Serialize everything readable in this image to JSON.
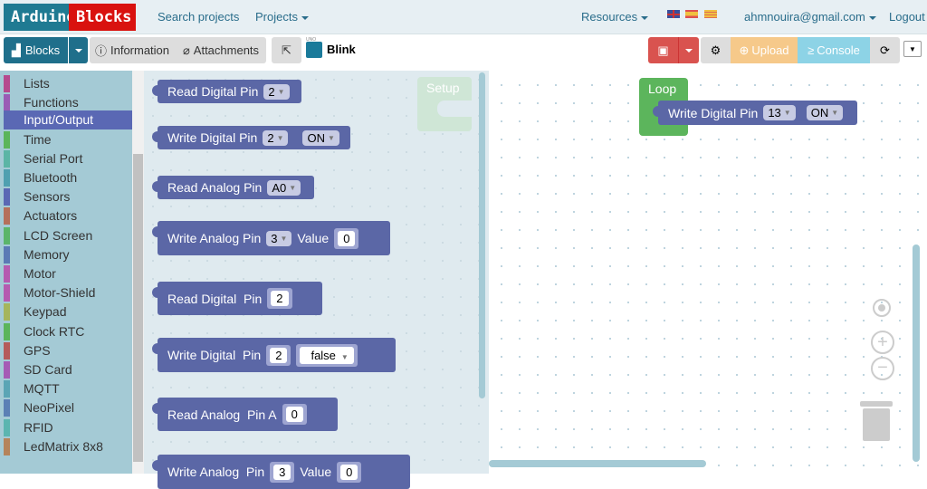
{
  "nav": {
    "logo": [
      "Arduino",
      "Blocks"
    ],
    "search": "Search projects",
    "projects": "Projects",
    "resources": "Resources",
    "user": "ahmnouira@gmail.com",
    "logout": "Logout",
    "languages": [
      "en",
      "es",
      "ca"
    ]
  },
  "toolbar": {
    "blocks": "Blocks",
    "information": "Information",
    "attachments": "Attachments",
    "board": "UNO",
    "project_name": "Blink",
    "upload": "Upload",
    "console": "Console",
    "colors": {
      "save": "#d9534f",
      "upload": "#f6c98a",
      "console": "#8dd3e6",
      "blocks": "#1f6f8b"
    }
  },
  "sidebar": {
    "items": [
      {
        "label": "Lists",
        "color": "#b54a8e"
      },
      {
        "label": "Functions",
        "color": "#9a5bb5"
      },
      {
        "label": "Input/Output",
        "color": "#5a68b4",
        "selected": true
      },
      {
        "label": "Time",
        "color": "#5bb55b"
      },
      {
        "label": "Serial Port",
        "color": "#5bb5a5"
      },
      {
        "label": "Bluetooth",
        "color": "#4fa0b0"
      },
      {
        "label": "Sensors",
        "color": "#5a68b4"
      },
      {
        "label": "Actuators",
        "color": "#b5705b"
      },
      {
        "label": "LCD Screen",
        "color": "#5bb56a"
      },
      {
        "label": "Memory",
        "color": "#5b7ab5"
      },
      {
        "label": "Motor",
        "color": "#b55bb0"
      },
      {
        "label": "Motor-Shield",
        "color": "#b55bb0"
      },
      {
        "label": "Keypad",
        "color": "#a5b55b"
      },
      {
        "label": "Clock RTC",
        "color": "#5bb55b"
      },
      {
        "label": "GPS",
        "color": "#b55b5b"
      },
      {
        "label": "SD Card",
        "color": "#a55bb5"
      },
      {
        "label": "MQTT",
        "color": "#5ba5b5"
      },
      {
        "label": "NeoPixel",
        "color": "#5b80b5"
      },
      {
        "label": "RFID",
        "color": "#5bb5b0"
      },
      {
        "label": "LedMatrix 8x8",
        "color": "#b5845b"
      }
    ]
  },
  "flyout": {
    "b1": {
      "label": "Read Digital Pin",
      "pin": "2"
    },
    "b2": {
      "label": "Write Digital Pin",
      "pin": "2",
      "state": "ON"
    },
    "b3": {
      "label": "Read Analog Pin",
      "pin": "A0"
    },
    "b4": {
      "label": "Write Analog Pin",
      "pin": "3",
      "value_label": "Value",
      "value": "0"
    },
    "b5": {
      "label": "Read Digital  Pin",
      "pin": "2"
    },
    "b6": {
      "label": "Write Digital  Pin",
      "pin": "2",
      "state": "false"
    },
    "b7": {
      "label": "Read Analog  Pin A",
      "pin": "0"
    },
    "b8": {
      "label": "Write Analog  Pin",
      "pin": "3",
      "value_label": "Value",
      "value": "0"
    }
  },
  "workspace": {
    "setup": "Setup",
    "loop": "Loop",
    "write": {
      "label": "Write Digital Pin",
      "pin": "13",
      "state": "ON"
    }
  }
}
